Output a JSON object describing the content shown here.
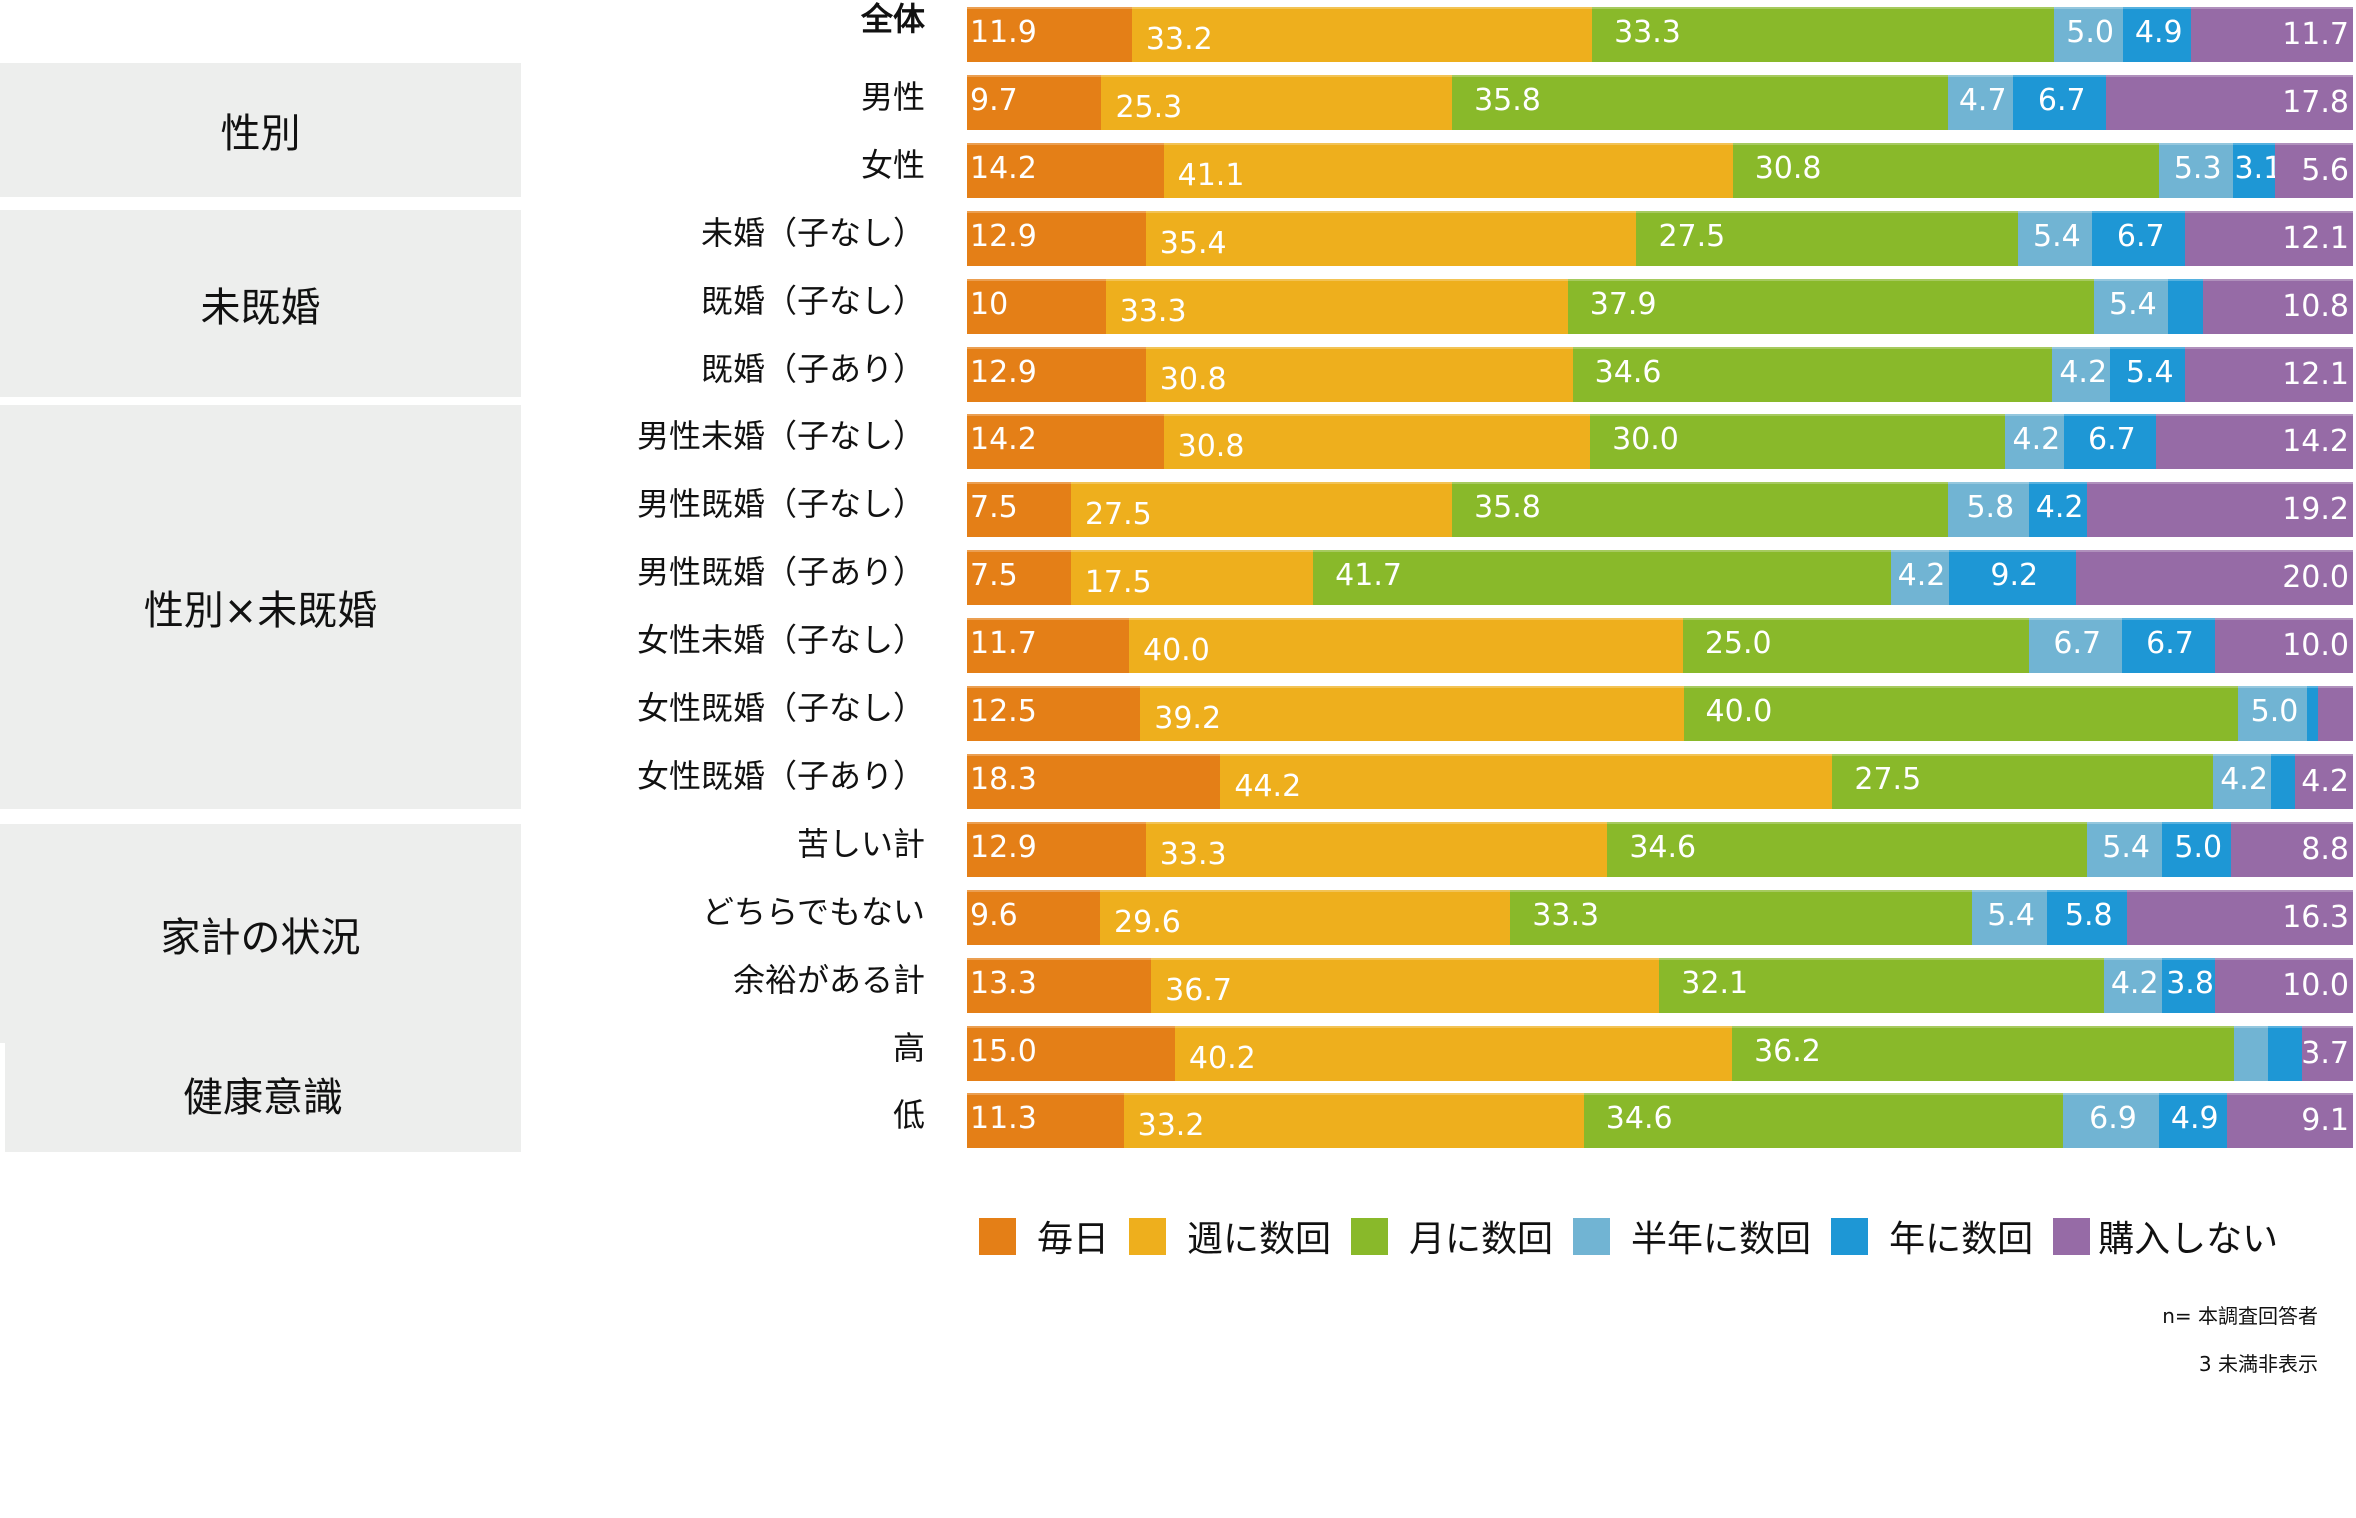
{
  "chart_data": {
    "type": "bar",
    "orientation": "horizontal",
    "stacked": true,
    "percent": true,
    "title": "",
    "xlabel": "",
    "ylabel": "",
    "xlim": [
      0,
      100
    ],
    "grid": false,
    "legend_position": "bottom",
    "categories": [
      "全体",
      "男性",
      "女性",
      "未婚（子なし）",
      "既婚（子なし）",
      "既婚（子あり）",
      "男性未婚（子なし）",
      "男性既婚（子なし）",
      "男性既婚（子あり）",
      "女性未婚（子なし）",
      "女性既婚（子なし）",
      "女性既婚（子あり）",
      "苦しい計",
      "どちらでもない",
      "余裕がある計",
      "高",
      "低"
    ],
    "groups": [
      {
        "label": "性別",
        "rows": [
          1,
          2
        ]
      },
      {
        "label": "未既婚",
        "rows": [
          3,
          4,
          5
        ]
      },
      {
        "label": "性別×未既婚",
        "rows": [
          6,
          7,
          8,
          9,
          10,
          11
        ]
      },
      {
        "label": "家計の状況",
        "rows": [
          12,
          13,
          14
        ]
      },
      {
        "label": "健康意識",
        "rows": [
          15,
          16
        ]
      }
    ],
    "series": [
      {
        "name": "毎日",
        "color": "#e47f17",
        "values": [
          11.9,
          9.7,
          14.2,
          12.9,
          10,
          12.9,
          14.2,
          7.5,
          7.5,
          11.7,
          12.5,
          18.3,
          12.9,
          9.6,
          13.3,
          15.0,
          11.3
        ],
        "labels": [
          "11.9",
          "9.7",
          "14.2",
          "12.9",
          "10",
          "12.9",
          "14.2",
          "7.5",
          "7.5",
          "11.7",
          "12.5",
          "18.3",
          "12.9",
          "9.6",
          "13.3",
          "15.0",
          "11.3"
        ]
      },
      {
        "name": "週に数回",
        "color": "#eeaf1d",
        "values": [
          33.2,
          25.3,
          41.1,
          35.4,
          33.3,
          30.8,
          30.8,
          27.5,
          17.5,
          40.0,
          39.2,
          44.2,
          33.3,
          29.6,
          36.7,
          40.2,
          33.2
        ],
        "labels": [
          "33.2",
          "25.3",
          "41.1",
          "35.4",
          "33.3",
          "30.8",
          "30.8",
          "27.5",
          "17.5",
          "40.0",
          "39.2",
          "44.2",
          "33.3",
          "29.6",
          "36.7",
          "40.2",
          "33.2"
        ]
      },
      {
        "name": "月に数回",
        "color": "#89b92a",
        "values": [
          33.3,
          35.8,
          30.8,
          27.5,
          37.9,
          34.6,
          30.0,
          35.8,
          41.7,
          25.0,
          40.0,
          27.5,
          34.6,
          33.3,
          32.1,
          36.2,
          34.6
        ],
        "labels": [
          "33.3",
          "35.8",
          "30.8",
          "27.5",
          "37.9",
          "34.6",
          "30.0",
          "35.8",
          "41.7",
          "25.0",
          "40.0",
          "27.5",
          "34.6",
          "33.3",
          "32.1",
          "36.2",
          "34.6"
        ]
      },
      {
        "name": "半年に数回",
        "color": "#71b4d3",
        "values": [
          5.0,
          4.7,
          5.3,
          5.4,
          5.4,
          4.2,
          4.2,
          5.8,
          4.2,
          6.7,
          5.0,
          4.2,
          5.4,
          5.4,
          4.2,
          2.5,
          6.9
        ],
        "labels": [
          "5.0",
          "4.7",
          "5.3",
          "5.4",
          "5.4",
          "4.2",
          "4.2",
          "5.8",
          "4.2",
          "6.7",
          "5.0",
          "4.2",
          "5.4",
          "5.4",
          "4.2",
          "",
          "6.9"
        ]
      },
      {
        "name": "年に数回",
        "color": "#1e97d5",
        "values": [
          4.9,
          6.7,
          3.1,
          6.7,
          2.5,
          5.4,
          6.7,
          4.2,
          9.2,
          6.7,
          0.8,
          1.7,
          5.0,
          5.8,
          3.8,
          2.4,
          4.9
        ],
        "labels": [
          "4.9",
          "6.7",
          "3.1",
          "6.7",
          "",
          "5.4",
          "6.7",
          "4.2",
          "9.2",
          "6.7",
          "",
          "",
          "5.0",
          "5.8",
          "3.8",
          "",
          "4.9"
        ]
      },
      {
        "name": "購入しない",
        "color": "#966ba6",
        "values": [
          11.7,
          17.8,
          5.6,
          12.1,
          10.8,
          12.1,
          14.2,
          19.2,
          20.0,
          10.0,
          2.5,
          4.2,
          8.8,
          16.3,
          10.0,
          3.7,
          9.1
        ],
        "labels": [
          "11.7",
          "17.8",
          "5.6",
          "12.1",
          "10.8",
          "12.1",
          "14.2",
          "19.2",
          "20.0",
          "10.0",
          "",
          "4.2",
          "8.8",
          "16.3",
          "10.0",
          "3.7",
          "9.1"
        ]
      }
    ],
    "notes": [
      "n= 本調査回答者",
      "3 未満非表示"
    ]
  },
  "legend": [
    {
      "label": "毎日",
      "color": "#e47f17"
    },
    {
      "label": "週に数回",
      "color": "#eeaf1d"
    },
    {
      "label": "月に数回",
      "color": "#89b92a"
    },
    {
      "label": "半年に数回",
      "color": "#71b4d3"
    },
    {
      "label": "年に数回",
      "color": "#1e97d5"
    },
    {
      "label": "購入しない",
      "color": "#966ba6"
    }
  ],
  "notes": {
    "sample": "n= 本調査回答者",
    "threshold": "3 未満非表示"
  },
  "groups": {
    "gender": "性別",
    "marital": "未既婚",
    "gender_marital": "性別×未既婚",
    "household": "家計の状況",
    "health": "健康意識"
  }
}
